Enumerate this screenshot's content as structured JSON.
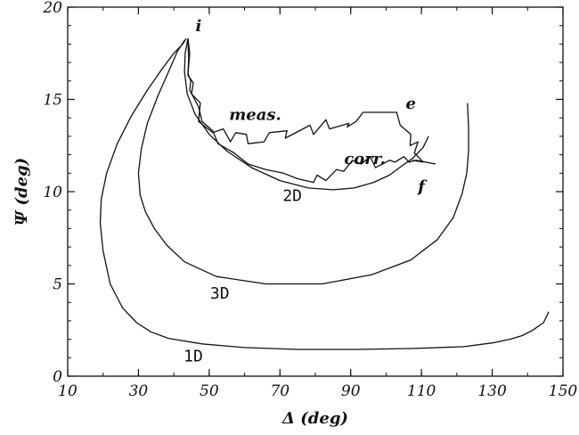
{
  "chart_data": {
    "type": "line",
    "title": "",
    "xlabel": "Δ (deg)",
    "ylabel": "Ψ (deg)",
    "xlim": [
      10,
      150
    ],
    "ylim": [
      0,
      20
    ],
    "xticks": [
      "10",
      "30",
      "50",
      "70",
      "90",
      "110",
      "130",
      "150"
    ],
    "yticks": [
      "0",
      "5",
      "10",
      "15",
      "20"
    ],
    "x_minor_step": 10,
    "y_minor_step": 1,
    "grid": false,
    "series": [
      {
        "name": "1D",
        "x": [
          146.0,
          144.5,
          141.5,
          138.5,
          135.0,
          130.0,
          122.0,
          108.0,
          92.0,
          75.0,
          60.0,
          48.0,
          38.5,
          33.5,
          29.5,
          25.5,
          22.0,
          20.0,
          19.2,
          19.5,
          21.0,
          24.0,
          28.0,
          32.5,
          36.5,
          40.0,
          42.5,
          43.5
        ],
        "y": [
          3.5,
          2.9,
          2.5,
          2.2,
          2.0,
          1.8,
          1.6,
          1.5,
          1.45,
          1.45,
          1.55,
          1.75,
          2.05,
          2.4,
          2.9,
          3.7,
          5.0,
          6.8,
          8.3,
          9.6,
          11.0,
          12.6,
          14.1,
          15.5,
          16.6,
          17.5,
          18.0,
          18.3
        ]
      },
      {
        "name": "3D",
        "x": [
          123.0,
          123.3,
          123.3,
          122.8,
          121.5,
          119.0,
          114.5,
          107.0,
          96.0,
          82.0,
          66.0,
          52.0,
          43.0,
          38.0,
          34.5,
          32.0,
          30.5,
          30.0,
          30.8,
          32.5,
          35.5,
          38.5,
          41.0,
          43.0
        ],
        "y": [
          14.8,
          13.5,
          12.2,
          11.0,
          9.9,
          8.6,
          7.4,
          6.3,
          5.5,
          5.0,
          5.0,
          5.4,
          6.2,
          7.1,
          8.0,
          8.9,
          9.8,
          11.0,
          12.3,
          13.7,
          15.2,
          16.5,
          17.6,
          18.2
        ]
      },
      {
        "name": "2D",
        "x": [
          44.0,
          43.2,
          43.0,
          43.8,
          46.0,
          50.0,
          55.0,
          62.0,
          70.0,
          78.0,
          85.0,
          91.0,
          96.5,
          101.0,
          104.5,
          107.5,
          110.5,
          112.0
        ],
        "y": [
          18.3,
          17.5,
          16.5,
          15.3,
          14.2,
          13.1,
          12.2,
          11.3,
          10.6,
          10.2,
          10.1,
          10.2,
          10.5,
          10.9,
          11.4,
          11.8,
          12.4,
          13.0
        ]
      },
      {
        "name": "meas.",
        "x": [
          44.0,
          44.2,
          44.0,
          45.5,
          45.0,
          47.5,
          47.0,
          51.0,
          54.0,
          56.0,
          57.5,
          60.5,
          61.0,
          65.5,
          67.0,
          72.0,
          71.5,
          78.5,
          79.5,
          83.0,
          84.0,
          89.5,
          89.0,
          91.5,
          93.5,
          103.0,
          104.0,
          107.0,
          106.8,
          109.0,
          108.0,
          110.5,
          107.5
        ],
        "y": [
          18.3,
          17.2,
          16.3,
          15.9,
          15.3,
          14.8,
          13.8,
          13.2,
          13.4,
          12.7,
          13.2,
          13.1,
          12.6,
          12.7,
          13.2,
          13.3,
          12.9,
          13.6,
          13.1,
          13.9,
          13.4,
          13.7,
          13.5,
          13.8,
          14.3,
          14.3,
          13.6,
          13.1,
          12.5,
          12.7,
          12.1,
          11.6,
          11.7
        ]
      },
      {
        "name": "corr.",
        "x": [
          44.0,
          44.5,
          44.0,
          44.8,
          44.5,
          47.0,
          48.0,
          51.0,
          52.5,
          57.0,
          61.0,
          66.0,
          71.0,
          75.0,
          79.5,
          80.5,
          83.0,
          86.0,
          88.0,
          90.5,
          93.0,
          95.5,
          97.0,
          101.0,
          102.5,
          105.0,
          106.5,
          108.5,
          114.0
        ],
        "y": [
          18.3,
          17.5,
          16.4,
          16.0,
          15.5,
          14.6,
          13.8,
          13.3,
          12.6,
          12.1,
          11.5,
          11.2,
          11.0,
          10.7,
          10.5,
          10.9,
          10.6,
          11.2,
          11.1,
          11.7,
          11.5,
          11.9,
          11.3,
          11.7,
          11.6,
          11.9,
          11.6,
          11.7,
          11.5
        ]
      }
    ],
    "annotations": [
      {
        "text": "i",
        "x": 47.0,
        "y": 18.7
      },
      {
        "text": "e",
        "x": 107.0,
        "y": 14.5
      },
      {
        "text": "f",
        "x": 110.0,
        "y": 10.0
      },
      {
        "text": "meas.",
        "x": 63.0,
        "y": 13.9
      },
      {
        "text": "corr.",
        "x": 94.0,
        "y": 11.5
      },
      {
        "text": "2D",
        "x": 73.5,
        "y": 9.5
      },
      {
        "text": "3D",
        "x": 53.0,
        "y": 4.2
      },
      {
        "text": "1D",
        "x": 45.5,
        "y": 0.8
      }
    ]
  }
}
